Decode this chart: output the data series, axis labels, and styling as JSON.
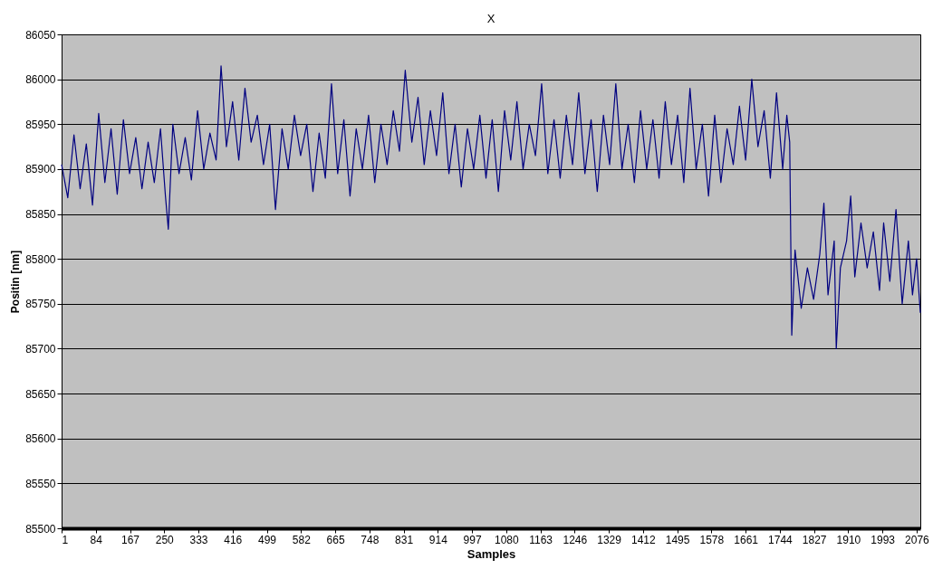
{
  "chart_data": {
    "type": "line",
    "title": "X",
    "xlabel": "Samples",
    "ylabel": "Positin [nm]",
    "grid": "y",
    "marker": "none",
    "line_style": "solid",
    "xlim": [
      1,
      2085
    ],
    "xticks": [
      1,
      84,
      167,
      250,
      333,
      416,
      499,
      582,
      665,
      748,
      831,
      914,
      997,
      1080,
      1163,
      1246,
      1329,
      1412,
      1495,
      1578,
      1661,
      1744,
      1827,
      1910,
      1993,
      2076
    ],
    "ylim": [
      85500,
      86050
    ],
    "yticks": [
      85500,
      85550,
      85600,
      85650,
      85700,
      85750,
      85800,
      85850,
      85900,
      85950,
      86000,
      86050
    ],
    "series": [
      {
        "color": "#000080",
        "x": [
          1,
          16,
          31,
          46,
          61,
          76,
          91,
          106,
          121,
          136,
          151,
          166,
          181,
          196,
          211,
          226,
          241,
          253,
          260,
          271,
          286,
          301,
          316,
          331,
          346,
          361,
          376,
          388,
          401,
          416,
          431,
          446,
          461,
          476,
          491,
          506,
          520,
          536,
          551,
          566,
          581,
          596,
          611,
          626,
          641,
          656,
          671,
          686,
          701,
          716,
          731,
          746,
          761,
          776,
          791,
          806,
          821,
          835,
          851,
          866,
          881,
          896,
          911,
          926,
          941,
          956,
          971,
          986,
          1001,
          1016,
          1031,
          1046,
          1061,
          1076,
          1091,
          1106,
          1121,
          1136,
          1151,
          1166,
          1181,
          1196,
          1211,
          1226,
          1241,
          1256,
          1271,
          1286,
          1301,
          1316,
          1331,
          1346,
          1361,
          1376,
          1391,
          1406,
          1421,
          1436,
          1451,
          1466,
          1481,
          1496,
          1511,
          1526,
          1541,
          1556,
          1571,
          1586,
          1601,
          1616,
          1631,
          1646,
          1661,
          1676,
          1691,
          1706,
          1721,
          1736,
          1751,
          1761,
          1768,
          1773,
          1781,
          1796,
          1811,
          1826,
          1841,
          1851,
          1861,
          1876,
          1881,
          1891,
          1906,
          1916,
          1926,
          1941,
          1956,
          1971,
          1986,
          1996,
          2011,
          2026,
          2041,
          2056,
          2066,
          2076,
          2085
        ],
        "values": [
          85905,
          85868,
          85938,
          85878,
          85928,
          85860,
          85962,
          85885,
          85945,
          85872,
          85955,
          85895,
          85935,
          85878,
          85930,
          85885,
          85945,
          85870,
          85833,
          85950,
          85895,
          85935,
          85888,
          85965,
          85900,
          85940,
          85910,
          86015,
          85925,
          85975,
          85910,
          85990,
          85930,
          85960,
          85905,
          85950,
          85855,
          85945,
          85900,
          85960,
          85915,
          85950,
          85875,
          85940,
          85890,
          85995,
          85895,
          85955,
          85870,
          85945,
          85900,
          85960,
          85885,
          85950,
          85905,
          85965,
          85920,
          86010,
          85930,
          85980,
          85905,
          85965,
          85915,
          85985,
          85895,
          85950,
          85880,
          85945,
          85900,
          85960,
          85890,
          85955,
          85875,
          85965,
          85910,
          85975,
          85900,
          85950,
          85915,
          85995,
          85895,
          85955,
          85890,
          85960,
          85905,
          85985,
          85895,
          85955,
          85875,
          85960,
          85905,
          85995,
          85900,
          85950,
          85885,
          85965,
          85900,
          85955,
          85890,
          85975,
          85905,
          85960,
          85885,
          85990,
          85900,
          85950,
          85870,
          85960,
          85885,
          85945,
          85905,
          85970,
          85910,
          86000,
          85925,
          85965,
          85890,
          85985,
          85900,
          85960,
          85930,
          85715,
          85810,
          85745,
          85790,
          85755,
          85805,
          85862,
          85760,
          85820,
          85700,
          85790,
          85820,
          85870,
          85780,
          85840,
          85790,
          85830,
          85765,
          85840,
          85775,
          85855,
          85750,
          85820,
          85760,
          85800,
          85740
        ]
      }
    ]
  }
}
